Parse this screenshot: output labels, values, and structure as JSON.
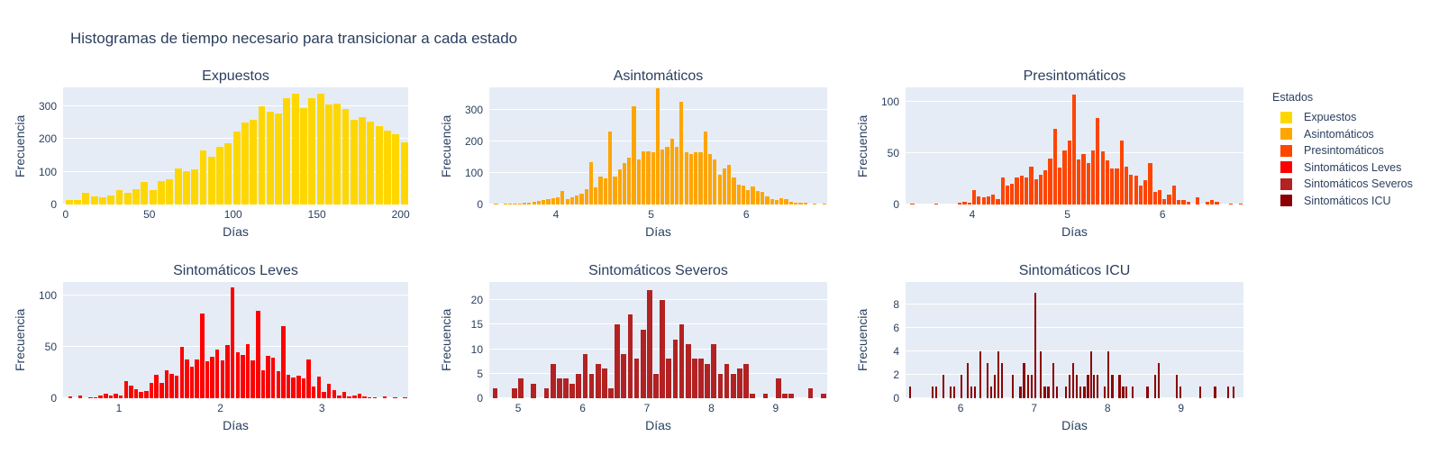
{
  "title": "Histogramas de tiempo necesario para transicionar a cada estado",
  "colors": {
    "background": "#ffffff",
    "plot_background": "#E5ECF6",
    "grid": "#ffffff",
    "text": "#2a3f5f"
  },
  "legend": {
    "title": "Estados",
    "position": "right",
    "items": [
      {
        "label": "Expuestos",
        "color": "#FFD700"
      },
      {
        "label": "Asintomáticos",
        "color": "#FFA500"
      },
      {
        "label": "Presintomáticos",
        "color": "#FF4500"
      },
      {
        "label": "Sintomáticos Leves",
        "color": "#FF0000"
      },
      {
        "label": "Sintomáticos Severos",
        "color": "#B22222"
      },
      {
        "label": "Sintomáticos ICU",
        "color": "#8B0000"
      }
    ]
  },
  "chart_data": [
    {
      "type": "bar",
      "title": "Expuestos",
      "xlabel": "Días",
      "ylabel": "Frecuencia",
      "color": "#FFD700",
      "grid": true,
      "xlim": [
        -1.5,
        204.5
      ],
      "ylim": [
        0,
        358
      ],
      "xticks": [
        0,
        50,
        100,
        150,
        200
      ],
      "yticks": [
        0,
        100,
        200,
        300
      ],
      "bin_width": 5,
      "bar_frac": 0.85,
      "bins": {
        "x": [
          0,
          5,
          10,
          15,
          20,
          25,
          30,
          35,
          40,
          45,
          50,
          55,
          60,
          65,
          70,
          75,
          80,
          85,
          90,
          95,
          100,
          105,
          110,
          115,
          120,
          125,
          130,
          135,
          140,
          145,
          150,
          155,
          160,
          165,
          170,
          175,
          180,
          185,
          190,
          195,
          200
        ],
        "h": [
          15,
          13,
          35,
          25,
          22,
          27,
          44,
          37,
          48,
          70,
          43,
          72,
          78,
          111,
          103,
          108,
          165,
          146,
          175,
          188,
          222,
          250,
          260,
          300,
          285,
          277,
          325,
          338,
          295,
          324,
          340,
          305,
          308,
          293,
          258,
          268,
          253,
          240,
          225,
          214,
          189
        ]
      }
    },
    {
      "type": "bar",
      "title": "Asintomáticos",
      "xlabel": "Días",
      "ylabel": "Frecuencia",
      "color": "#FFA500",
      "grid": true,
      "xlim": [
        3.3,
        6.85
      ],
      "ylim": [
        0,
        372
      ],
      "xticks": [
        4,
        5,
        6
      ],
      "yticks": [
        0,
        100,
        200,
        300
      ],
      "bin_width": 0.05,
      "bar_frac": 0.8,
      "bins": {
        "x": [
          3.35,
          3.45,
          3.5,
          3.55,
          3.6,
          3.65,
          3.7,
          3.75,
          3.8,
          3.85,
          3.9,
          3.95,
          4.0,
          4.05,
          4.1,
          4.15,
          4.2,
          4.25,
          4.3,
          4.35,
          4.4,
          4.45,
          4.5,
          4.55,
          4.6,
          4.65,
          4.7,
          4.75,
          4.8,
          4.85,
          4.9,
          4.95,
          5.0,
          5.05,
          5.1,
          5.15,
          5.2,
          5.25,
          5.3,
          5.35,
          5.4,
          5.45,
          5.5,
          5.55,
          5.6,
          5.65,
          5.7,
          5.75,
          5.8,
          5.85,
          5.9,
          5.95,
          6.0,
          6.05,
          6.1,
          6.15,
          6.2,
          6.25,
          6.3,
          6.35,
          6.4,
          6.45,
          6.5,
          6.55,
          6.6,
          6.7,
          6.8
        ],
        "h": [
          2,
          3,
          2,
          4,
          3,
          5,
          7,
          9,
          11,
          14,
          16,
          19,
          22,
          43,
          18,
          24,
          28,
          33,
          48,
          135,
          53,
          88,
          82,
          233,
          90,
          112,
          133,
          148,
          313,
          143,
          170,
          168,
          166,
          370,
          175,
          183,
          210,
          183,
          327,
          167,
          160,
          165,
          167,
          233,
          161,
          142,
          95,
          115,
          125,
          87,
          63,
          60,
          46,
          57,
          44,
          40,
          27,
          17,
          13,
          21,
          17,
          8,
          5,
          7,
          5,
          4,
          3
        ]
      }
    },
    {
      "type": "bar",
      "title": "Presintomáticos",
      "xlabel": "Días",
      "ylabel": "Frecuencia",
      "color": "#FF4500",
      "grid": true,
      "xlim": [
        3.3,
        6.85
      ],
      "ylim": [
        0,
        114
      ],
      "xticks": [
        4,
        5,
        6
      ],
      "yticks": [
        0,
        50,
        100
      ],
      "bin_width": 0.05,
      "bar_frac": 0.8,
      "bins": {
        "x": [
          3.35,
          3.6,
          3.85,
          3.9,
          3.95,
          4.0,
          4.05,
          4.1,
          4.15,
          4.2,
          4.25,
          4.3,
          4.35,
          4.4,
          4.45,
          4.5,
          4.55,
          4.6,
          4.65,
          4.7,
          4.75,
          4.8,
          4.85,
          4.9,
          4.95,
          5.0,
          5.05,
          5.1,
          5.15,
          5.2,
          5.25,
          5.3,
          5.35,
          5.4,
          5.45,
          5.5,
          5.55,
          5.6,
          5.65,
          5.7,
          5.75,
          5.8,
          5.85,
          5.9,
          5.95,
          6.0,
          6.05,
          6.1,
          6.15,
          6.2,
          6.25,
          6.35,
          6.45,
          6.5,
          6.55,
          6.7,
          6.8
        ],
        "h": [
          1,
          1,
          2,
          3,
          2,
          14,
          8,
          7,
          8,
          10,
          5,
          26,
          18,
          20,
          26,
          28,
          26,
          37,
          25,
          29,
          33,
          45,
          74,
          36,
          53,
          62,
          107,
          44,
          49,
          40,
          53,
          84,
          52,
          43,
          35,
          35,
          62,
          37,
          29,
          28,
          18,
          24,
          40,
          12,
          14,
          5,
          10,
          18,
          4,
          4,
          3,
          7,
          3,
          4,
          3,
          1,
          1
        ]
      }
    },
    {
      "type": "bar",
      "title": "Sintomáticos Leves",
      "xlabel": "Días",
      "ylabel": "Frecuencia",
      "color": "#FF0000",
      "grid": true,
      "xlim": [
        0.45,
        3.85
      ],
      "ylim": [
        0,
        113
      ],
      "xticks": [
        1,
        2,
        3
      ],
      "yticks": [
        0,
        50,
        100
      ],
      "bin_width": 0.05,
      "bar_frac": 0.8,
      "bins": {
        "x": [
          0.5,
          0.6,
          0.7,
          0.75,
          0.8,
          0.85,
          0.9,
          0.95,
          1.0,
          1.05,
          1.1,
          1.15,
          1.2,
          1.25,
          1.3,
          1.35,
          1.4,
          1.45,
          1.5,
          1.55,
          1.6,
          1.65,
          1.7,
          1.75,
          1.8,
          1.85,
          1.9,
          1.95,
          2.0,
          2.05,
          2.1,
          2.15,
          2.2,
          2.25,
          2.3,
          2.35,
          2.4,
          2.45,
          2.5,
          2.55,
          2.6,
          2.65,
          2.7,
          2.75,
          2.8,
          2.85,
          2.9,
          2.95,
          3.0,
          3.05,
          3.1,
          3.15,
          3.2,
          3.25,
          3.3,
          3.35,
          3.4,
          3.45,
          3.5,
          3.6,
          3.7,
          3.8
        ],
        "h": [
          2,
          3,
          1,
          1,
          3,
          4,
          3,
          4,
          3,
          17,
          12,
          9,
          6,
          7,
          15,
          23,
          15,
          27,
          24,
          22,
          50,
          38,
          31,
          38,
          82,
          36,
          40,
          47,
          37,
          52,
          108,
          45,
          42,
          53,
          37,
          85,
          27,
          41,
          39,
          26,
          70,
          23,
          20,
          22,
          19,
          38,
          11,
          21,
          6,
          14,
          8,
          3,
          6,
          2,
          3,
          4,
          2,
          1,
          1,
          2,
          1,
          1
        ]
      }
    },
    {
      "type": "bar",
      "title": "Sintomáticos Severos",
      "xlabel": "Días",
      "ylabel": "Frecuencia",
      "color": "#B22222",
      "grid": true,
      "xlim": [
        4.55,
        9.8
      ],
      "ylim": [
        0,
        23.7
      ],
      "xticks": [
        5,
        6,
        7,
        8,
        9
      ],
      "yticks": [
        0,
        5,
        10,
        15,
        20
      ],
      "bin_width": 0.1,
      "bar_frac": 0.8,
      "bins": {
        "x": [
          4.6,
          4.9,
          5.0,
          5.2,
          5.4,
          5.5,
          5.6,
          5.7,
          5.8,
          5.9,
          6.0,
          6.1,
          6.2,
          6.3,
          6.4,
          6.5,
          6.6,
          6.7,
          6.8,
          6.9,
          7.0,
          7.1,
          7.2,
          7.3,
          7.4,
          7.5,
          7.6,
          7.7,
          7.8,
          7.9,
          8.0,
          8.1,
          8.2,
          8.3,
          8.4,
          8.5,
          8.6,
          8.8,
          9.0,
          9.1,
          9.2,
          9.5,
          9.7
        ],
        "h": [
          2,
          2,
          4,
          3,
          2,
          7,
          4,
          4,
          3,
          5,
          9,
          5,
          7,
          6,
          2,
          15,
          9,
          17,
          8,
          14,
          22,
          5,
          20,
          8,
          12,
          15,
          11,
          8,
          8,
          7,
          11,
          5,
          7,
          5,
          6,
          7,
          1,
          1,
          4,
          1,
          1,
          2,
          1
        ]
      }
    },
    {
      "type": "bar",
      "title": "Sintomáticos ICU",
      "xlabel": "Días",
      "ylabel": "Frecuencia",
      "color": "#8B0000",
      "grid": true,
      "xlim": [
        5.25,
        9.85
      ],
      "ylim": [
        0,
        9.9
      ],
      "xticks": [
        6,
        7,
        8,
        9
      ],
      "yticks": [
        0,
        2,
        4,
        6,
        8
      ],
      "bin_width": 0.045,
      "bar_frac": 0.62,
      "bins": {
        "x": [
          5.3,
          5.6,
          5.65,
          5.75,
          5.85,
          5.9,
          6.0,
          6.08,
          6.13,
          6.18,
          6.25,
          6.35,
          6.4,
          6.45,
          6.5,
          6.55,
          6.7,
          6.8,
          6.85,
          6.9,
          6.95,
          7.0,
          7.08,
          7.13,
          7.18,
          7.25,
          7.3,
          7.42,
          7.47,
          7.52,
          7.57,
          7.62,
          7.67,
          7.72,
          7.76,
          7.8,
          7.85,
          7.95,
          8.0,
          8.05,
          8.15,
          8.2,
          8.24,
          8.33,
          8.53,
          8.63,
          8.68,
          8.93,
          8.98,
          9.25,
          9.45,
          9.63,
          9.7
        ],
        "h": [
          1,
          1,
          1,
          2,
          1,
          1,
          2,
          3,
          1,
          1,
          4,
          3,
          1,
          2,
          4,
          3,
          2,
          1,
          3,
          2,
          2,
          9,
          4,
          1,
          1,
          3,
          1,
          1,
          2,
          3,
          2,
          1,
          1,
          2,
          4,
          2,
          2,
          1,
          4,
          2,
          2,
          1,
          1,
          1,
          1,
          2,
          3,
          2,
          1,
          1,
          1,
          1,
          1
        ]
      }
    }
  ]
}
